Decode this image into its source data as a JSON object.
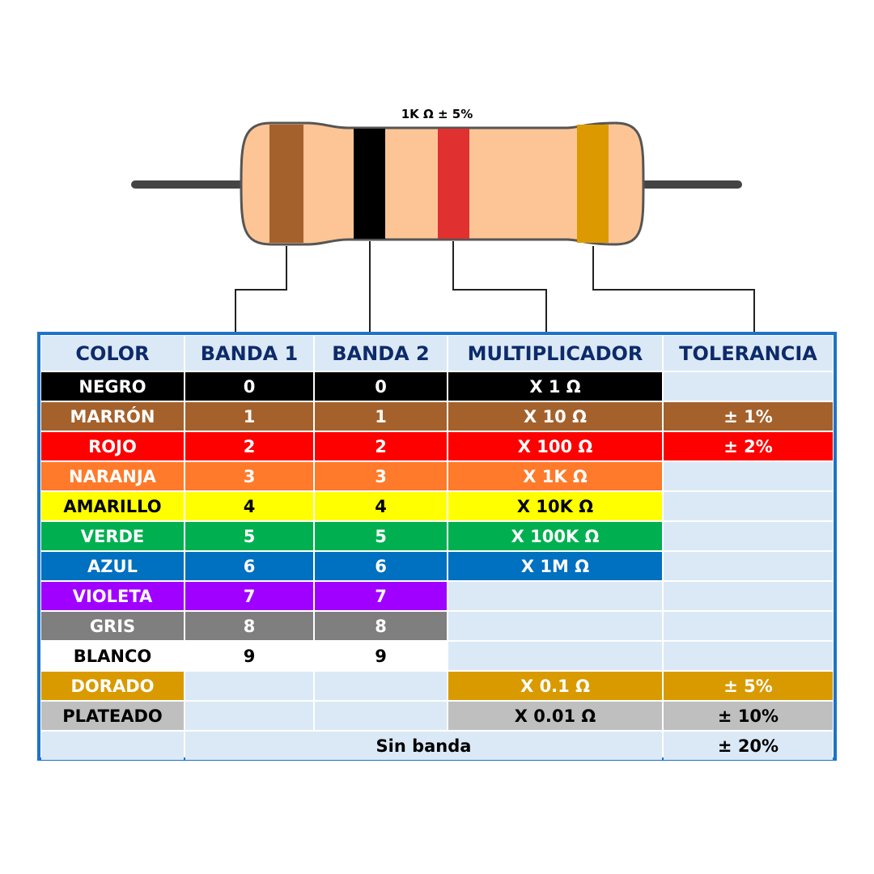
{
  "resistor": {
    "label": "1K Ω  ± 5%"
  },
  "table": {
    "headers": [
      "COLOR",
      "BANDA 1",
      "BANDA 2",
      "MULTIPLICADOR",
      "TOLERANCIA"
    ],
    "rows": [
      [
        "NEGRO",
        "0",
        "0",
        "X 1 Ω",
        null
      ],
      [
        "MARRÓN",
        "1",
        "1",
        "X 10 Ω",
        "± 1%"
      ],
      [
        "ROJO",
        "2",
        "2",
        "X 100 Ω",
        "± 2%"
      ],
      [
        "NARANJA",
        "3",
        "3",
        "X 1K Ω",
        null
      ],
      [
        "AMARILLO",
        "4",
        "4",
        "X 10K Ω",
        null
      ],
      [
        "VERDE",
        "5",
        "5",
        "X 100K Ω",
        null
      ],
      [
        "AZUL",
        "6",
        "6",
        "X 1M Ω",
        null
      ],
      [
        "VIOLETA",
        "7",
        "7",
        null,
        null
      ],
      [
        "GRIS",
        "8",
        "8",
        null,
        null
      ],
      [
        "BLANCO",
        "9",
        "9",
        null,
        null
      ],
      [
        "DORADO",
        null,
        null,
        "X 0.1 Ω",
        "± 5%"
      ],
      [
        "PLATEADO",
        null,
        null,
        "X 0.01 Ω",
        "± 10%"
      ]
    ],
    "footer": {
      "label": "Sin banda",
      "tolerance": "± 20%"
    }
  }
}
